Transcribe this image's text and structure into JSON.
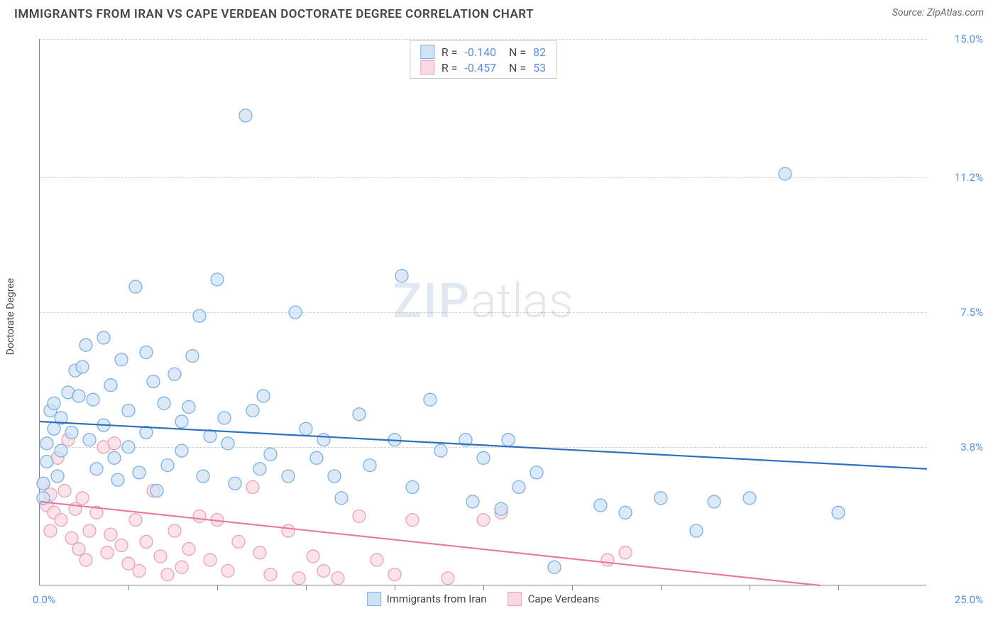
{
  "header": {
    "title": "IMMIGRANTS FROM IRAN VS CAPE VERDEAN DOCTORATE DEGREE CORRELATION CHART",
    "source_prefix": "Source: ",
    "source_name": "ZipAtlas.com"
  },
  "chart": {
    "type": "scatter",
    "ylabel": "Doctorate Degree",
    "xlim": [
      0,
      25
    ],
    "ylim": [
      0,
      15
    ],
    "x_ticks": [
      2.5,
      5,
      7.5,
      10,
      12.5,
      15,
      17.5,
      20,
      22.5
    ],
    "y_gridlines": [
      3.8,
      7.5,
      11.2,
      15.0
    ],
    "x_min_label": "0.0%",
    "x_max_label": "25.0%",
    "background_color": "#ffffff",
    "grid_color": "#d0d0d0",
    "axis_color": "#888888",
    "tick_label_color": "#5b8fd6",
    "marker_radius": 9,
    "marker_stroke_width": 1.3,
    "line_width": 2.2,
    "series": {
      "iran": {
        "label": "Immigrants from Iran",
        "fill": "#cfe2f6",
        "stroke": "#7eb0e3",
        "line_color": "#2f6fc0",
        "stats": {
          "R": "-0.140",
          "N": "82"
        },
        "trend": {
          "x1": 0,
          "y1": 4.5,
          "x2": 25,
          "y2": 3.2
        },
        "points": [
          [
            0.1,
            2.4
          ],
          [
            0.1,
            2.8
          ],
          [
            0.2,
            3.4
          ],
          [
            0.2,
            3.9
          ],
          [
            0.3,
            4.8
          ],
          [
            0.4,
            4.3
          ],
          [
            0.4,
            5.0
          ],
          [
            0.5,
            3.0
          ],
          [
            0.6,
            4.6
          ],
          [
            0.6,
            3.7
          ],
          [
            0.8,
            5.3
          ],
          [
            0.9,
            4.2
          ],
          [
            1.0,
            5.9
          ],
          [
            1.1,
            5.2
          ],
          [
            1.2,
            6.0
          ],
          [
            1.3,
            6.6
          ],
          [
            1.4,
            4.0
          ],
          [
            1.5,
            5.1
          ],
          [
            1.6,
            3.2
          ],
          [
            1.8,
            6.8
          ],
          [
            1.8,
            4.4
          ],
          [
            2.0,
            5.5
          ],
          [
            2.1,
            3.5
          ],
          [
            2.2,
            2.9
          ],
          [
            2.3,
            6.2
          ],
          [
            2.5,
            3.8
          ],
          [
            2.5,
            4.8
          ],
          [
            2.7,
            8.2
          ],
          [
            2.8,
            3.1
          ],
          [
            3.0,
            6.4
          ],
          [
            3.0,
            4.2
          ],
          [
            3.2,
            5.6
          ],
          [
            3.3,
            2.6
          ],
          [
            3.5,
            5.0
          ],
          [
            3.6,
            3.3
          ],
          [
            3.8,
            5.8
          ],
          [
            4.0,
            4.5
          ],
          [
            4.0,
            3.7
          ],
          [
            4.2,
            4.9
          ],
          [
            4.3,
            6.3
          ],
          [
            4.5,
            7.4
          ],
          [
            4.6,
            3.0
          ],
          [
            4.8,
            4.1
          ],
          [
            5.0,
            8.4
          ],
          [
            5.2,
            4.6
          ],
          [
            5.3,
            3.9
          ],
          [
            5.5,
            2.8
          ],
          [
            5.8,
            12.9
          ],
          [
            6.0,
            4.8
          ],
          [
            6.2,
            3.2
          ],
          [
            6.3,
            5.2
          ],
          [
            6.5,
            3.6
          ],
          [
            7.0,
            3.0
          ],
          [
            7.2,
            7.5
          ],
          [
            7.5,
            4.3
          ],
          [
            7.8,
            3.5
          ],
          [
            8.0,
            4.0
          ],
          [
            8.3,
            3.0
          ],
          [
            8.5,
            2.4
          ],
          [
            9.0,
            4.7
          ],
          [
            9.3,
            3.3
          ],
          [
            10.0,
            4.0
          ],
          [
            10.2,
            8.5
          ],
          [
            10.5,
            2.7
          ],
          [
            11.0,
            5.1
          ],
          [
            11.3,
            3.7
          ],
          [
            12.0,
            4.0
          ],
          [
            12.2,
            2.3
          ],
          [
            12.5,
            3.5
          ],
          [
            13.0,
            2.1
          ],
          [
            13.2,
            4.0
          ],
          [
            13.5,
            2.7
          ],
          [
            14.0,
            3.1
          ],
          [
            14.5,
            0.5
          ],
          [
            15.8,
            2.2
          ],
          [
            16.5,
            2.0
          ],
          [
            17.5,
            2.4
          ],
          [
            18.5,
            1.5
          ],
          [
            19.0,
            2.3
          ],
          [
            20.0,
            2.4
          ],
          [
            21.0,
            11.3
          ],
          [
            22.5,
            2.0
          ]
        ]
      },
      "cape": {
        "label": "Cape Verdeans",
        "fill": "#f9d9e1",
        "stroke": "#e9a3b8",
        "line_color": "#e77aa0",
        "stats": {
          "R": "-0.457",
          "N": "53"
        },
        "trend": {
          "x1": 0,
          "y1": 2.3,
          "x2": 22,
          "y2": 0.0
        },
        "points": [
          [
            0.1,
            2.8
          ],
          [
            0.2,
            2.2
          ],
          [
            0.3,
            2.5
          ],
          [
            0.3,
            1.5
          ],
          [
            0.4,
            2.0
          ],
          [
            0.5,
            3.5
          ],
          [
            0.6,
            1.8
          ],
          [
            0.7,
            2.6
          ],
          [
            0.8,
            4.0
          ],
          [
            0.9,
            1.3
          ],
          [
            1.0,
            2.1
          ],
          [
            1.1,
            1.0
          ],
          [
            1.2,
            2.4
          ],
          [
            1.3,
            0.7
          ],
          [
            1.4,
            1.5
          ],
          [
            1.6,
            2.0
          ],
          [
            1.8,
            3.8
          ],
          [
            1.9,
            0.9
          ],
          [
            2.0,
            1.4
          ],
          [
            2.1,
            3.9
          ],
          [
            2.3,
            1.1
          ],
          [
            2.5,
            0.6
          ],
          [
            2.7,
            1.8
          ],
          [
            2.8,
            0.4
          ],
          [
            3.0,
            1.2
          ],
          [
            3.2,
            2.6
          ],
          [
            3.4,
            0.8
          ],
          [
            3.6,
            0.3
          ],
          [
            3.8,
            1.5
          ],
          [
            4.0,
            0.5
          ],
          [
            4.2,
            1.0
          ],
          [
            4.5,
            1.9
          ],
          [
            4.8,
            0.7
          ],
          [
            5.0,
            1.8
          ],
          [
            5.3,
            0.4
          ],
          [
            5.6,
            1.2
          ],
          [
            6.0,
            2.7
          ],
          [
            6.2,
            0.9
          ],
          [
            6.5,
            0.3
          ],
          [
            7.0,
            1.5
          ],
          [
            7.3,
            0.2
          ],
          [
            7.7,
            0.8
          ],
          [
            8.0,
            0.4
          ],
          [
            8.4,
            0.2
          ],
          [
            9.0,
            1.9
          ],
          [
            9.5,
            0.7
          ],
          [
            10.0,
            0.3
          ],
          [
            10.5,
            1.8
          ],
          [
            11.5,
            0.2
          ],
          [
            12.5,
            1.8
          ],
          [
            13.0,
            2.0
          ],
          [
            16.0,
            0.7
          ],
          [
            16.5,
            0.9
          ]
        ]
      }
    }
  },
  "watermark": {
    "zip": "ZIP",
    "atlas": "atlas"
  }
}
